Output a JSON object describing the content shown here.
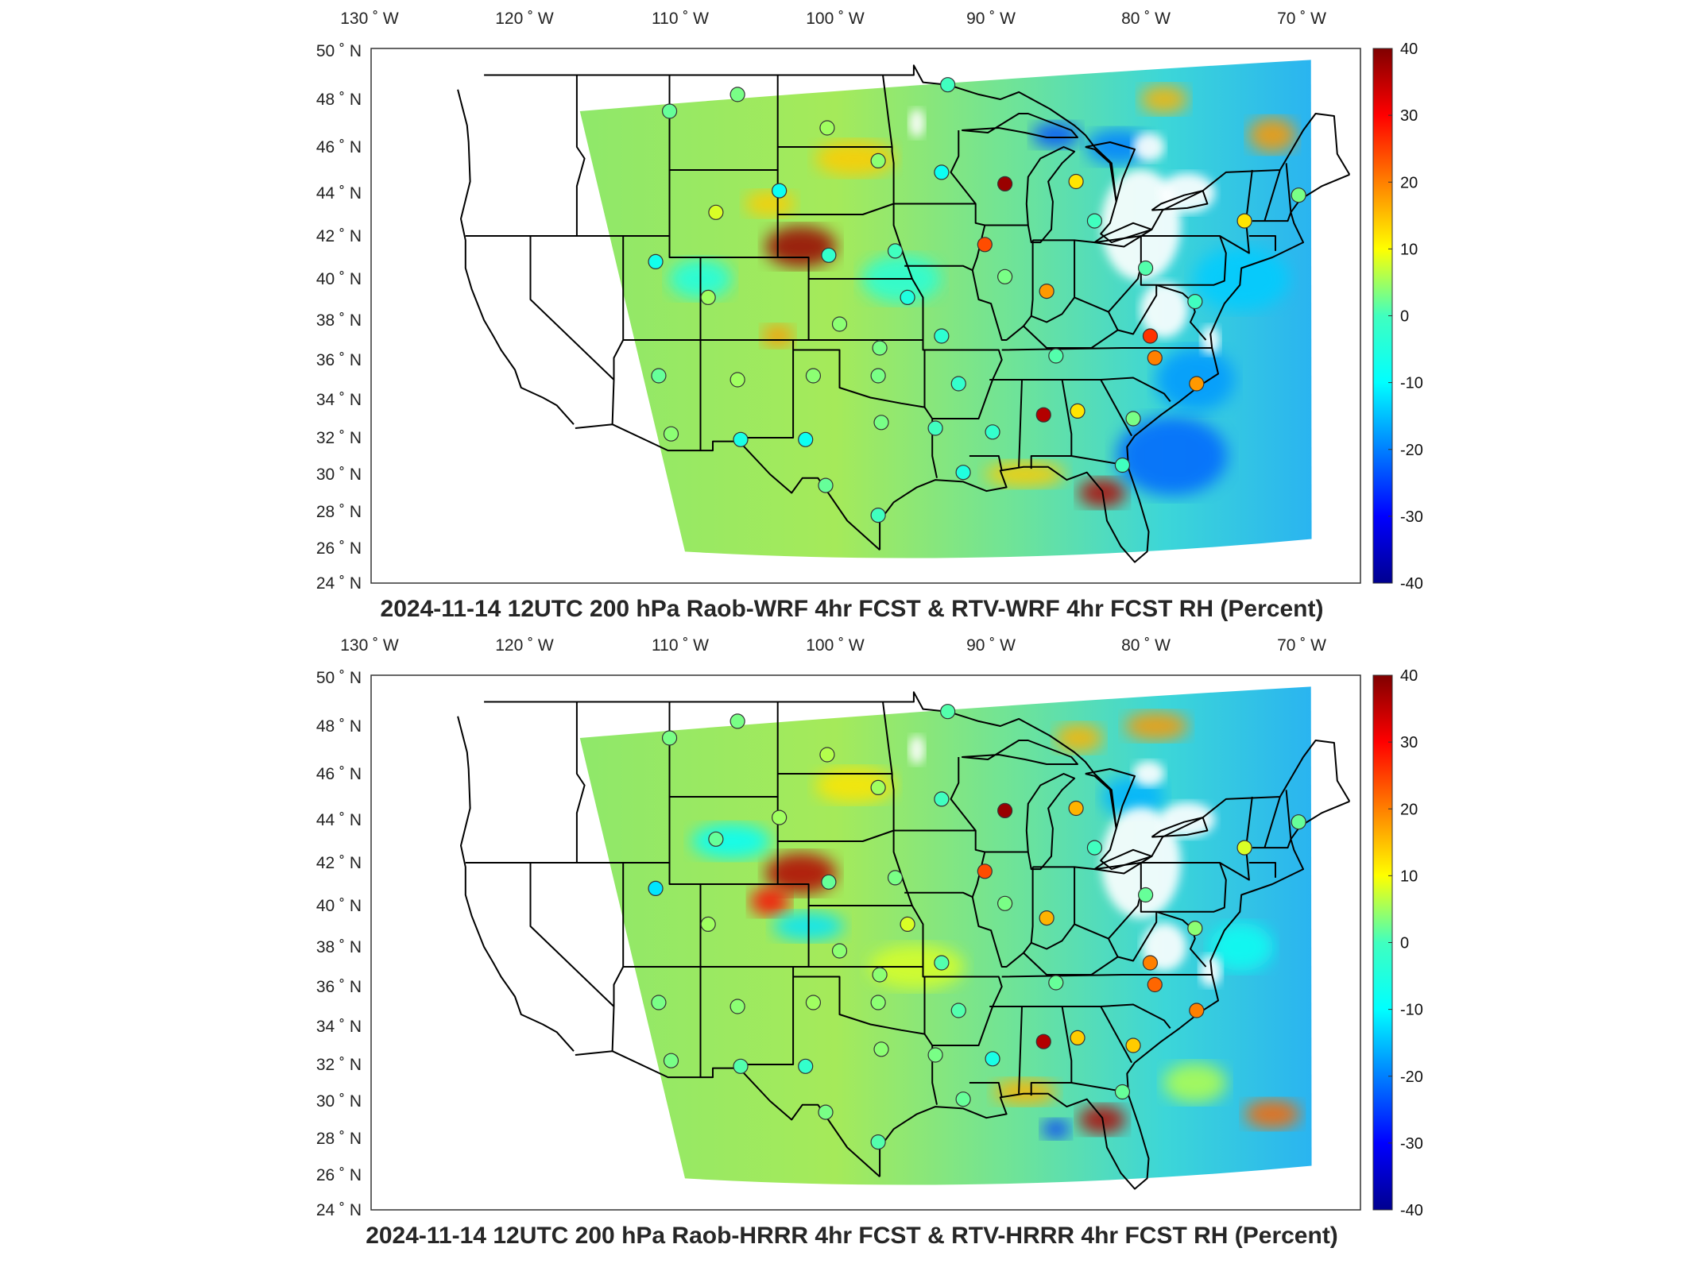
{
  "panels": [
    {
      "title": "2024-11-14 12UTC 200 hPa Raob-WRF 4hr FCST & RTV-WRF 4hr FCST RH (Percent)",
      "lon_labels": [
        "130 ˚ W",
        "120 ˚ W",
        "110 ˚ W",
        "100 ˚ W",
        "90 ˚ W",
        "80 ˚ W",
        "70 ˚ W"
      ],
      "lat_labels": [
        "50 ˚ N",
        "48 ˚ N",
        "46 ˚ N",
        "44 ˚ N",
        "42 ˚ N",
        "40 ˚ N",
        "38 ˚ N",
        "36 ˚ N",
        "34 ˚ N",
        "32 ˚ N",
        "30 ˚ N",
        "28 ˚ N",
        "26 ˚ N",
        "24 ˚ N"
      ],
      "colorbar": {
        "ticks": [
          "40",
          "30",
          "20",
          "10",
          "0",
          "-10",
          "-20",
          "-30",
          "-40"
        ],
        "range": [
          -40,
          40
        ]
      },
      "stations": [
        {
          "lon": -111.0,
          "lat": 47.5,
          "value": 2
        },
        {
          "lon": -106.6,
          "lat": 48.2,
          "value": 3
        },
        {
          "lon": -100.8,
          "lat": 46.8,
          "value": 5
        },
        {
          "lon": -97.5,
          "lat": 45.4,
          "value": 4
        },
        {
          "lon": -93.4,
          "lat": 44.9,
          "value": -8
        },
        {
          "lon": -89.3,
          "lat": 44.4,
          "value": 38
        },
        {
          "lon": -84.7,
          "lat": 44.5,
          "value": 12
        },
        {
          "lon": -83.5,
          "lat": 42.7,
          "value": 0
        },
        {
          "lon": -73.8,
          "lat": 42.7,
          "value": 12
        },
        {
          "lon": -103.9,
          "lat": 44.1,
          "value": -8
        },
        {
          "lon": -108.0,
          "lat": 43.1,
          "value": 8
        },
        {
          "lon": -111.9,
          "lat": 40.8,
          "value": -7
        },
        {
          "lon": -100.7,
          "lat": 41.1,
          "value": -2
        },
        {
          "lon": -96.4,
          "lat": 41.3,
          "value": 0
        },
        {
          "lon": -90.6,
          "lat": 41.6,
          "value": 24
        },
        {
          "lon": -89.3,
          "lat": 40.1,
          "value": 3
        },
        {
          "lon": -108.5,
          "lat": 39.1,
          "value": 5
        },
        {
          "lon": -100.0,
          "lat": 37.8,
          "value": 4
        },
        {
          "lon": -95.6,
          "lat": 39.1,
          "value": -5
        },
        {
          "lon": -86.6,
          "lat": 39.4,
          "value": 18
        },
        {
          "lon": -80.2,
          "lat": 40.5,
          "value": 1
        },
        {
          "lon": -77.0,
          "lat": 38.9,
          "value": 0
        },
        {
          "lon": -79.9,
          "lat": 37.2,
          "value": 26
        },
        {
          "lon": -93.4,
          "lat": 37.2,
          "value": -3
        },
        {
          "lon": -97.4,
          "lat": 36.6,
          "value": 3
        },
        {
          "lon": -111.7,
          "lat": 35.2,
          "value": 2
        },
        {
          "lon": -106.6,
          "lat": 35.0,
          "value": 5
        },
        {
          "lon": -101.7,
          "lat": 35.2,
          "value": 4
        },
        {
          "lon": -97.5,
          "lat": 35.2,
          "value": 3
        },
        {
          "lon": -92.3,
          "lat": 34.8,
          "value": -2
        },
        {
          "lon": -86.0,
          "lat": 36.2,
          "value": 1
        },
        {
          "lon": -79.6,
          "lat": 36.1,
          "value": 20
        },
        {
          "lon": -76.9,
          "lat": 34.8,
          "value": 18
        },
        {
          "lon": -86.8,
          "lat": 33.2,
          "value": 36
        },
        {
          "lon": -84.6,
          "lat": 33.4,
          "value": 12
        },
        {
          "lon": -81.0,
          "lat": 33.0,
          "value": 3
        },
        {
          "lon": -110.9,
          "lat": 32.2,
          "value": 4
        },
        {
          "lon": -106.4,
          "lat": 31.9,
          "value": -6
        },
        {
          "lon": -102.2,
          "lat": 31.9,
          "value": -8
        },
        {
          "lon": -97.3,
          "lat": 32.8,
          "value": 3
        },
        {
          "lon": -93.8,
          "lat": 32.5,
          "value": 0
        },
        {
          "lon": -90.1,
          "lat": 32.3,
          "value": -2
        },
        {
          "lon": -92.0,
          "lat": 30.1,
          "value": -5
        },
        {
          "lon": -81.7,
          "lat": 30.5,
          "value": 0
        },
        {
          "lon": -100.9,
          "lat": 29.4,
          "value": 2
        },
        {
          "lon": -97.5,
          "lat": 27.8,
          "value": 0
        },
        {
          "lon": -93.0,
          "lat": 48.6,
          "value": 0
        },
        {
          "lon": -70.3,
          "lat": 43.9,
          "value": 3
        }
      ]
    },
    {
      "title": "2024-11-14 12UTC 200 hPa Raob-HRRR 4hr FCST & RTV-HRRR 4hr FCST RH (Percent)",
      "lon_labels": [
        "130 ˚ W",
        "120 ˚ W",
        "110 ˚ W",
        "100 ˚ W",
        "90 ˚ W",
        "80 ˚ W",
        "70 ˚ W"
      ],
      "lat_labels": [
        "50 ˚ N",
        "48 ˚ N",
        "46 ˚ N",
        "44 ˚ N",
        "42 ˚ N",
        "40 ˚ N",
        "38 ˚ N",
        "36 ˚ N",
        "34 ˚ N",
        "32 ˚ N",
        "30 ˚ N",
        "28 ˚ N",
        "26 ˚ N",
        "24 ˚ N"
      ],
      "colorbar": {
        "ticks": [
          "40",
          "30",
          "20",
          "10",
          "0",
          "-10",
          "-20",
          "-30",
          "-40"
        ],
        "range": [
          -40,
          40
        ]
      },
      "stations": [
        {
          "lon": -111.0,
          "lat": 47.5,
          "value": 3
        },
        {
          "lon": -106.6,
          "lat": 48.2,
          "value": 3
        },
        {
          "lon": -100.8,
          "lat": 46.8,
          "value": 6
        },
        {
          "lon": -97.5,
          "lat": 45.4,
          "value": 5
        },
        {
          "lon": -93.4,
          "lat": 44.9,
          "value": 0
        },
        {
          "lon": -89.3,
          "lat": 44.4,
          "value": 38
        },
        {
          "lon": -84.7,
          "lat": 44.5,
          "value": 16
        },
        {
          "lon": -83.5,
          "lat": 42.7,
          "value": 0
        },
        {
          "lon": -73.8,
          "lat": 42.7,
          "value": 8
        },
        {
          "lon": -103.9,
          "lat": 44.1,
          "value": 5
        },
        {
          "lon": -108.0,
          "lat": 43.1,
          "value": 2
        },
        {
          "lon": -111.9,
          "lat": 40.8,
          "value": -12
        },
        {
          "lon": -100.7,
          "lat": 41.1,
          "value": 2
        },
        {
          "lon": -96.4,
          "lat": 41.3,
          "value": 3
        },
        {
          "lon": -90.6,
          "lat": 41.6,
          "value": 24
        },
        {
          "lon": -89.3,
          "lat": 40.1,
          "value": 3
        },
        {
          "lon": -108.5,
          "lat": 39.1,
          "value": 5
        },
        {
          "lon": -100.0,
          "lat": 37.8,
          "value": 4
        },
        {
          "lon": -95.6,
          "lat": 39.1,
          "value": 8
        },
        {
          "lon": -86.6,
          "lat": 39.4,
          "value": 16
        },
        {
          "lon": -80.2,
          "lat": 40.5,
          "value": 2
        },
        {
          "lon": -77.0,
          "lat": 38.9,
          "value": 4
        },
        {
          "lon": -79.9,
          "lat": 37.2,
          "value": 20
        },
        {
          "lon": -93.4,
          "lat": 37.2,
          "value": 1
        },
        {
          "lon": -97.4,
          "lat": 36.6,
          "value": 4
        },
        {
          "lon": -111.7,
          "lat": 35.2,
          "value": 3
        },
        {
          "lon": -106.6,
          "lat": 35.0,
          "value": 4
        },
        {
          "lon": -101.7,
          "lat": 35.2,
          "value": 5
        },
        {
          "lon": -97.5,
          "lat": 35.2,
          "value": 4
        },
        {
          "lon": -92.3,
          "lat": 34.8,
          "value": 1
        },
        {
          "lon": -86.0,
          "lat": 36.2,
          "value": 2
        },
        {
          "lon": -79.6,
          "lat": 36.1,
          "value": 22
        },
        {
          "lon": -76.9,
          "lat": 34.8,
          "value": 20
        },
        {
          "lon": -86.8,
          "lat": 33.2,
          "value": 36
        },
        {
          "lon": -84.6,
          "lat": 33.4,
          "value": 14
        },
        {
          "lon": -81.0,
          "lat": 33.0,
          "value": 14
        },
        {
          "lon": -110.9,
          "lat": 32.2,
          "value": 3
        },
        {
          "lon": -106.4,
          "lat": 31.9,
          "value": 1
        },
        {
          "lon": -102.2,
          "lat": 31.9,
          "value": -2
        },
        {
          "lon": -97.3,
          "lat": 32.8,
          "value": 4
        },
        {
          "lon": -93.8,
          "lat": 32.5,
          "value": 3
        },
        {
          "lon": -90.1,
          "lat": 32.3,
          "value": -6
        },
        {
          "lon": -92.0,
          "lat": 30.1,
          "value": 2
        },
        {
          "lon": -81.7,
          "lat": 30.5,
          "value": 2
        },
        {
          "lon": -100.9,
          "lat": 29.4,
          "value": 3
        },
        {
          "lon": -97.5,
          "lat": 27.8,
          "value": 1
        },
        {
          "lon": -93.0,
          "lat": 48.6,
          "value": 1
        },
        {
          "lon": -70.3,
          "lat": 43.9,
          "value": 2
        }
      ]
    }
  ]
}
